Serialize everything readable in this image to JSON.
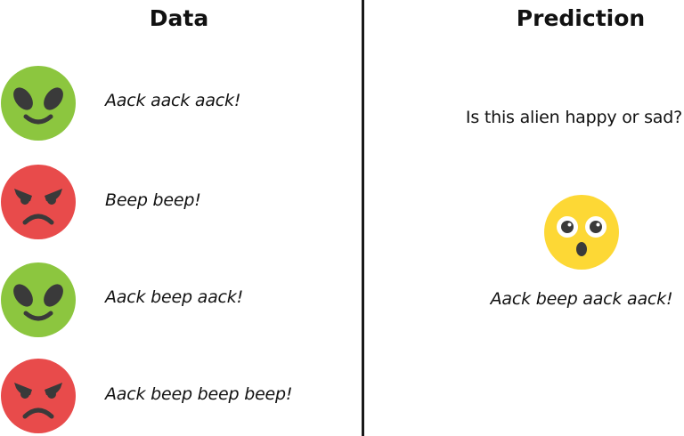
{
  "left_panel": {
    "heading": "Data",
    "examples": [
      {
        "face": "happy-alien-icon",
        "color": "#8cc63f",
        "text": "Aack aack aack!"
      },
      {
        "face": "angry-face-icon",
        "color": "#e84b4b",
        "text": "Beep beep!"
      },
      {
        "face": "happy-alien-icon",
        "color": "#8cc63f",
        "text": "Aack beep aack!"
      },
      {
        "face": "angry-face-icon",
        "color": "#e84b4b",
        "text": "Aack beep beep beep!"
      }
    ]
  },
  "right_panel": {
    "heading": "Prediction",
    "question": "Is this alien happy or sad?",
    "face": "surprised-face-icon",
    "color": "#fdd835",
    "text": "Aack beep aack aack!"
  }
}
